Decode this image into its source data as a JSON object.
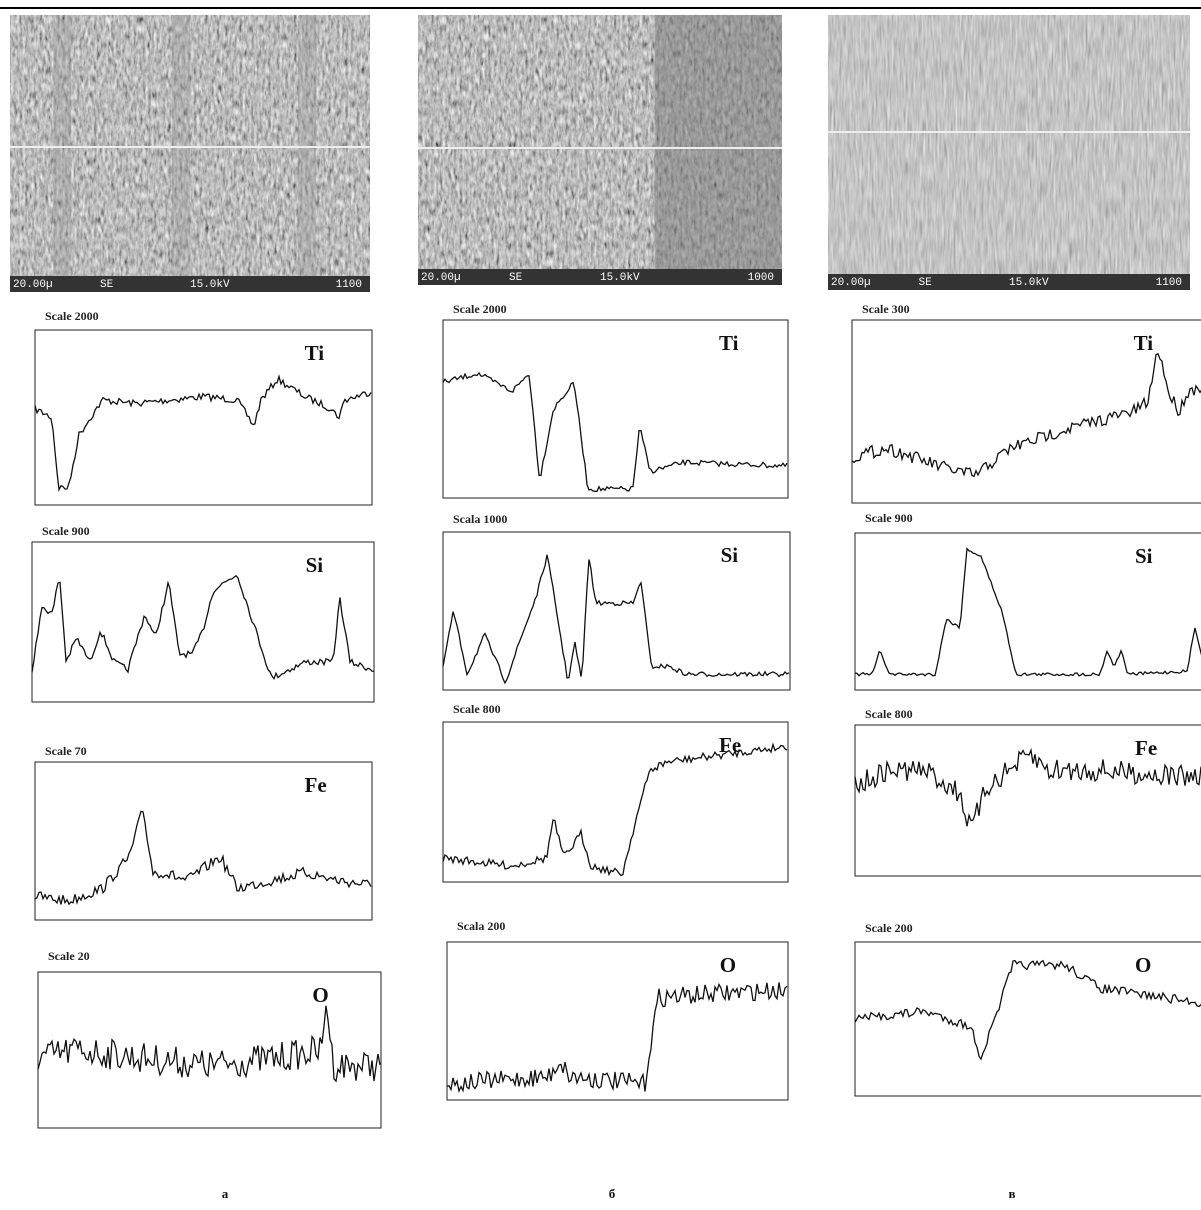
{
  "panels": [
    {
      "label": "а",
      "image": {
        "scale_bar": "20.00µ",
        "detector": "SE",
        "voltage": "15.0kV",
        "magnification": "1100"
      },
      "profiles": [
        {
          "scale": "Scale 2000",
          "element": "Ti"
        },
        {
          "scale": "Scale 900",
          "element": "Si"
        },
        {
          "scale": "Scale 70",
          "element": "Fe"
        },
        {
          "scale": "Scale 20",
          "element": "O"
        }
      ]
    },
    {
      "label": "б",
      "image": {
        "scale_bar": "20.00µ",
        "detector": "SE",
        "voltage": "15.0kV",
        "magnification": "1000"
      },
      "profiles": [
        {
          "scale": "Scale 2000",
          "element": "Ti"
        },
        {
          "scale": "Scala 1000",
          "element": "Si"
        },
        {
          "scale": "Scale 800",
          "element": "Fe"
        },
        {
          "scale": "Scala 200",
          "element": "O"
        }
      ]
    },
    {
      "label": "в",
      "image": {
        "scale_bar": "20.00µ",
        "detector": "SE",
        "voltage": "15.0kV",
        "magnification": "1100"
      },
      "profiles": [
        {
          "scale": "Scale 300",
          "element": "Ti"
        },
        {
          "scale": "Scale 900",
          "element": "Si"
        },
        {
          "scale": "Scale 800",
          "element": "Fe"
        },
        {
          "scale": "Scale 200",
          "element": "O"
        }
      ]
    }
  ]
}
